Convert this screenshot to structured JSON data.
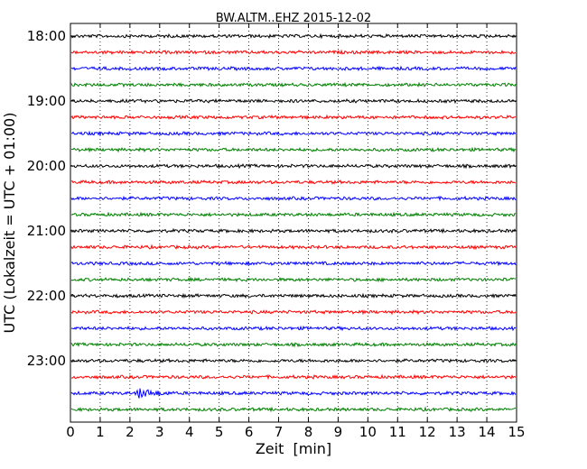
{
  "chart_data": {
    "type": "line",
    "title": "BW.ALTM..EHZ 2015-12-02",
    "xlabel": "Zeit  [min]",
    "ylabel": "UTC (Lokalzeit = UTC + 01:00)",
    "xlim": [
      0,
      15
    ],
    "x_ticks": [
      "0",
      "1",
      "2",
      "3",
      "4",
      "5",
      "6",
      "7",
      "8",
      "9",
      "10",
      "11",
      "12",
      "13",
      "14",
      "15"
    ],
    "y_tick_labels": [
      "18:00",
      "19:00",
      "20:00",
      "21:00",
      "22:00",
      "23:00"
    ],
    "y_ticks_hours": [
      18,
      19,
      20,
      21,
      22,
      23
    ],
    "row_interval_minutes": 15,
    "row_start_times": [
      "18:00",
      "18:15",
      "18:30",
      "18:45",
      "19:00",
      "19:15",
      "19:30",
      "19:45",
      "20:00",
      "20:15",
      "20:30",
      "20:45",
      "21:00",
      "21:15",
      "21:30",
      "21:45",
      "22:00",
      "22:15",
      "22:30",
      "22:45",
      "23:00",
      "23:15",
      "23:30",
      "23:45"
    ],
    "colors": [
      "#000000",
      "#ff0000",
      "#0000ff",
      "#008000"
    ],
    "grid": "vertical-dotted",
    "event": {
      "row_start": "23:30",
      "x_start_min": 2.2,
      "x_end_min": 3.4
    }
  }
}
